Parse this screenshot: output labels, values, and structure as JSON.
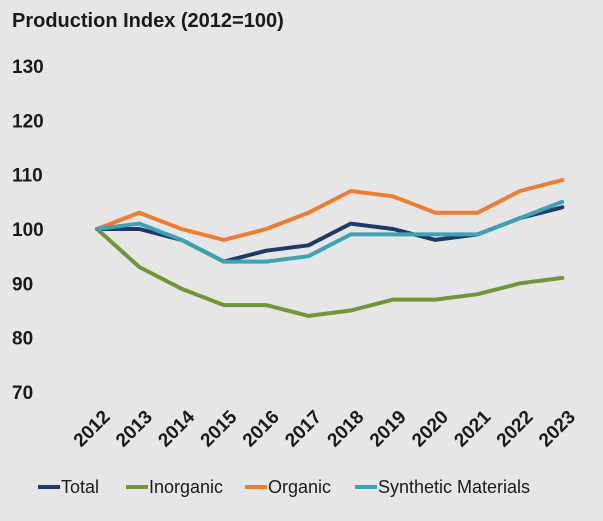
{
  "chart_data": {
    "type": "line",
    "title": "Production Index (2012=100)",
    "xlabel": "",
    "ylabel": "",
    "x": [
      "2012",
      "2013",
      "2014",
      "2015",
      "2016",
      "2017",
      "2018",
      "2019",
      "2020",
      "2021",
      "2022",
      "2023"
    ],
    "yticks": [
      70,
      80,
      90,
      100,
      110,
      120,
      130
    ],
    "ylim": [
      70,
      130
    ],
    "grid": false,
    "legend_position": "bottom",
    "series": [
      {
        "name": "Total",
        "color": "#1f3864",
        "values": [
          100,
          100,
          98,
          94,
          96,
          97,
          101,
          100,
          98,
          99,
          102,
          104
        ]
      },
      {
        "name": "Inorganic",
        "color": "#70963a",
        "values": [
          100,
          93,
          89,
          86,
          86,
          84,
          85,
          87,
          87,
          88,
          90,
          91
        ]
      },
      {
        "name": "Organic",
        "color": "#ed7d31",
        "values": [
          100,
          103,
          100,
          98,
          100,
          103,
          107,
          106,
          103,
          103,
          107,
          109
        ]
      },
      {
        "name": "Synthetic Materials",
        "color": "#3aa3b4",
        "values": [
          100,
          101,
          98,
          94,
          94,
          95,
          99,
          99,
          99,
          99,
          102,
          105
        ]
      }
    ]
  }
}
